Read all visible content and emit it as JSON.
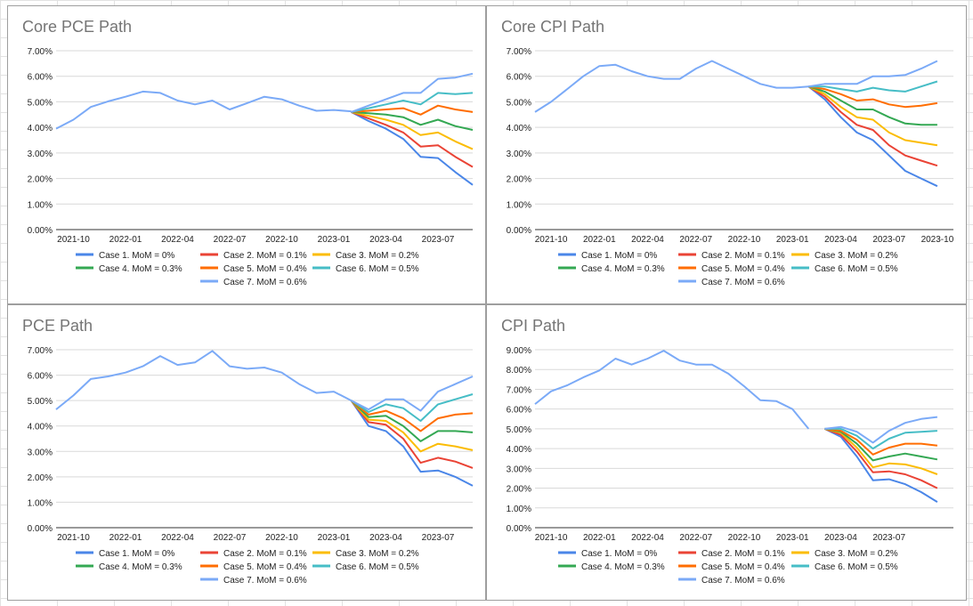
{
  "x_ticks": [
    "2021-10",
    "2022-01",
    "2022-04",
    "2022-07",
    "2022-10",
    "2023-01",
    "2023-04",
    "2023-07",
    "2023-10"
  ],
  "legend": [
    {
      "label": "Case 1. MoM = 0%",
      "color": "#4a86e8"
    },
    {
      "label": "Case 2. MoM = 0.1%",
      "color": "#ea4335"
    },
    {
      "label": "Case 3. MoM = 0.2%",
      "color": "#fbbc04"
    },
    {
      "label": "Case 4. MoM = 0.3%",
      "color": "#34a853"
    },
    {
      "label": "Case 5. MoM = 0.4%",
      "color": "#ff6d01"
    },
    {
      "label": "Case 6. MoM = 0.5%",
      "color": "#46bdc6"
    },
    {
      "label": "Case 7. MoM = 0.6%",
      "color": "#7baaf7"
    }
  ],
  "chart_data": [
    {
      "type": "line",
      "title": "Core PCE Path",
      "x_range": [
        "2021-09",
        "2023-09"
      ],
      "ylim": [
        0,
        7
      ],
      "yticks": [
        "0.00%",
        "1.00%",
        "2.00%",
        "3.00%",
        "4.00%",
        "5.00%",
        "6.00%",
        "7.00%"
      ],
      "x_tick_labels": [
        "2021-10",
        "2022-01",
        "2022-04",
        "2022-07",
        "2022-10",
        "2023-01",
        "2023-04",
        "2023-07"
      ],
      "grid": true,
      "legend_position": "bottom",
      "history": {
        "start": "2021-09",
        "values": [
          3.95,
          4.3,
          4.8,
          5.02,
          5.2,
          5.4,
          5.35,
          5.05,
          4.9,
          5.05,
          4.7,
          4.95,
          5.2,
          5.1,
          4.85,
          4.65,
          4.68,
          4.63
        ]
      },
      "scenarios": {
        "start": "2023-02",
        "series": [
          {
            "name": "Case 1. MoM = 0%",
            "values": [
              4.6,
              4.25,
              3.95,
              3.55,
              2.85,
              2.8,
              2.25,
              1.75
            ]
          },
          {
            "name": "Case 2. MoM = 0.1%",
            "values": [
              4.6,
              4.35,
              4.1,
              3.8,
              3.25,
              3.3,
              2.85,
              2.45
            ]
          },
          {
            "name": "Case 3. MoM = 0.2%",
            "values": [
              4.6,
              4.45,
              4.3,
              4.1,
              3.7,
              3.8,
              3.45,
              3.15
            ]
          },
          {
            "name": "Case 4. MoM = 0.3%",
            "values": [
              4.6,
              4.55,
              4.5,
              4.4,
              4.1,
              4.3,
              4.05,
              3.9
            ]
          },
          {
            "name": "Case 5. MoM = 0.4%",
            "values": [
              4.6,
              4.65,
              4.7,
              4.75,
              4.5,
              4.85,
              4.7,
              4.6
            ]
          },
          {
            "name": "Case 6. MoM = 0.5%",
            "values": [
              4.6,
              4.75,
              4.9,
              5.05,
              4.9,
              5.35,
              5.3,
              5.35
            ]
          },
          {
            "name": "Case 7. MoM = 0.6%",
            "values": [
              4.6,
              4.85,
              5.1,
              5.35,
              5.35,
              5.9,
              5.95,
              6.1
            ]
          }
        ]
      }
    },
    {
      "type": "line",
      "title": "Core CPI Path",
      "x_range": [
        "2021-09",
        "2023-11"
      ],
      "ylim": [
        0,
        7
      ],
      "yticks": [
        "0.00%",
        "1.00%",
        "2.00%",
        "3.00%",
        "4.00%",
        "5.00%",
        "6.00%",
        "7.00%"
      ],
      "x_tick_labels": [
        "2021-10",
        "2022-01",
        "2022-04",
        "2022-07",
        "2022-10",
        "2023-01",
        "2023-04",
        "2023-07",
        "2023-10"
      ],
      "grid": true,
      "legend_position": "bottom",
      "history": {
        "start": "2021-09",
        "values": [
          4.6,
          5.0,
          5.5,
          6.0,
          6.4,
          6.45,
          6.2,
          6.0,
          5.9,
          5.9,
          6.3,
          6.6,
          6.3,
          6.0,
          5.7,
          5.55,
          5.55,
          5.6
        ]
      },
      "scenarios": {
        "start": "2023-02",
        "series": [
          {
            "name": "Case 1. MoM = 0%",
            "values": [
              5.6,
              5.1,
              4.4,
              3.8,
              3.5,
              2.9,
              2.3,
              2.0,
              1.7
            ]
          },
          {
            "name": "Case 2. MoM = 0.1%",
            "values": [
              5.6,
              5.2,
              4.6,
              4.1,
              3.9,
              3.3,
              2.9,
              2.7,
              2.5
            ]
          },
          {
            "name": "Case 3. MoM = 0.2%",
            "values": [
              5.6,
              5.3,
              4.8,
              4.4,
              4.3,
              3.8,
              3.5,
              3.4,
              3.3
            ]
          },
          {
            "name": "Case 4. MoM = 0.3%",
            "values": [
              5.6,
              5.4,
              5.05,
              4.7,
              4.7,
              4.4,
              4.15,
              4.1,
              4.1
            ]
          },
          {
            "name": "Case 5. MoM = 0.4%",
            "values": [
              5.6,
              5.5,
              5.3,
              5.05,
              5.1,
              4.9,
              4.8,
              4.85,
              4.95
            ]
          },
          {
            "name": "Case 6. MoM = 0.5%",
            "values": [
              5.6,
              5.6,
              5.5,
              5.4,
              5.55,
              5.45,
              5.4,
              5.6,
              5.8
            ]
          },
          {
            "name": "Case 7. MoM = 0.6%",
            "values": [
              5.6,
              5.7,
              5.7,
              5.7,
              6.0,
              6.0,
              6.05,
              6.3,
              6.6
            ]
          }
        ]
      }
    },
    {
      "type": "line",
      "title": "PCE Path",
      "x_range": [
        "2021-09",
        "2023-09"
      ],
      "ylim": [
        0,
        7
      ],
      "yticks": [
        "0.00%",
        "1.00%",
        "2.00%",
        "3.00%",
        "4.00%",
        "5.00%",
        "6.00%",
        "7.00%"
      ],
      "x_tick_labels": [
        "2021-10",
        "2022-01",
        "2022-04",
        "2022-07",
        "2022-10",
        "2023-01",
        "2023-04",
        "2023-07"
      ],
      "grid": true,
      "legend_position": "bottom",
      "history": {
        "start": "2021-09",
        "values": [
          4.65,
          5.2,
          5.85,
          5.95,
          6.1,
          6.35,
          6.75,
          6.4,
          6.5,
          6.95,
          6.35,
          6.25,
          6.3,
          6.1,
          5.65,
          5.3,
          5.35,
          5.0
        ]
      },
      "scenarios": {
        "start": "2023-02",
        "series": [
          {
            "name": "Case 1. MoM = 0%",
            "values": [
              5.0,
              4.0,
              3.8,
              3.2,
              2.2,
              2.25,
              2.0,
              1.65
            ]
          },
          {
            "name": "Case 2. MoM = 0.1%",
            "values": [
              5.0,
              4.15,
              4.05,
              3.5,
              2.55,
              2.75,
              2.6,
              2.35
            ]
          },
          {
            "name": "Case 3. MoM = 0.2%",
            "values": [
              5.0,
              4.25,
              4.2,
              3.75,
              3.0,
              3.3,
              3.2,
              3.05
            ]
          },
          {
            "name": "Case 4. MoM = 0.3%",
            "values": [
              5.0,
              4.35,
              4.4,
              4.0,
              3.4,
              3.8,
              3.8,
              3.75
            ]
          },
          {
            "name": "Case 5. MoM = 0.4%",
            "values": [
              5.0,
              4.45,
              4.6,
              4.3,
              3.8,
              4.3,
              4.45,
              4.5
            ]
          },
          {
            "name": "Case 6. MoM = 0.5%",
            "values": [
              5.0,
              4.55,
              4.85,
              4.7,
              4.2,
              4.85,
              5.05,
              5.25
            ]
          },
          {
            "name": "Case 7. MoM = 0.6%",
            "values": [
              5.0,
              4.65,
              5.05,
              5.05,
              4.6,
              5.35,
              5.65,
              5.95
            ]
          }
        ]
      }
    },
    {
      "type": "line",
      "title": "CPI Path",
      "x_range": [
        "2021-09",
        "2023-11"
      ],
      "ylim": [
        0,
        9
      ],
      "yticks": [
        "0.00%",
        "1.00%",
        "2.00%",
        "3.00%",
        "4.00%",
        "5.00%",
        "6.00%",
        "7.00%",
        "8.00%",
        "9.00%"
      ],
      "x_tick_labels": [
        "2021-10",
        "2022-01",
        "2022-04",
        "2022-07",
        "2022-10",
        "2023-01",
        "2023-04",
        "2023-07"
      ],
      "grid": true,
      "legend_position": "bottom",
      "history": {
        "start": "2021-09",
        "values": [
          6.25,
          6.9,
          7.2,
          7.6,
          7.95,
          8.55,
          8.25,
          8.55,
          8.95,
          8.45,
          8.25,
          8.25,
          7.8,
          7.15,
          6.45,
          6.4,
          6.0,
          5.0
        ]
      },
      "scenarios": {
        "start": "2023-03",
        "series": [
          {
            "name": "Case 1. MoM = 0%",
            "values": [
              5.0,
              4.6,
              3.6,
              2.4,
              2.45,
              2.2,
              1.8,
              1.3
            ]
          },
          {
            "name": "Case 2. MoM = 0.1%",
            "values": [
              5.0,
              4.7,
              3.85,
              2.8,
              2.85,
              2.7,
              2.4,
              2.0
            ]
          },
          {
            "name": "Case 3. MoM = 0.2%",
            "values": [
              5.0,
              4.8,
              4.05,
              3.05,
              3.25,
              3.2,
              3.0,
              2.7
            ]
          },
          {
            "name": "Case 4. MoM = 0.3%",
            "values": [
              5.0,
              4.85,
              4.25,
              3.4,
              3.6,
              3.75,
              3.6,
              3.45
            ]
          },
          {
            "name": "Case 5. MoM = 0.4%",
            "values": [
              5.0,
              4.9,
              4.45,
              3.7,
              4.05,
              4.25,
              4.25,
              4.15
            ]
          },
          {
            "name": "Case 6. MoM = 0.5%",
            "values": [
              5.0,
              5.0,
              4.65,
              4.0,
              4.5,
              4.8,
              4.85,
              4.9
            ]
          },
          {
            "name": "Case 7. MoM = 0.6%",
            "values": [
              5.0,
              5.1,
              4.85,
              4.3,
              4.9,
              5.3,
              5.5,
              5.6
            ]
          }
        ]
      }
    }
  ]
}
